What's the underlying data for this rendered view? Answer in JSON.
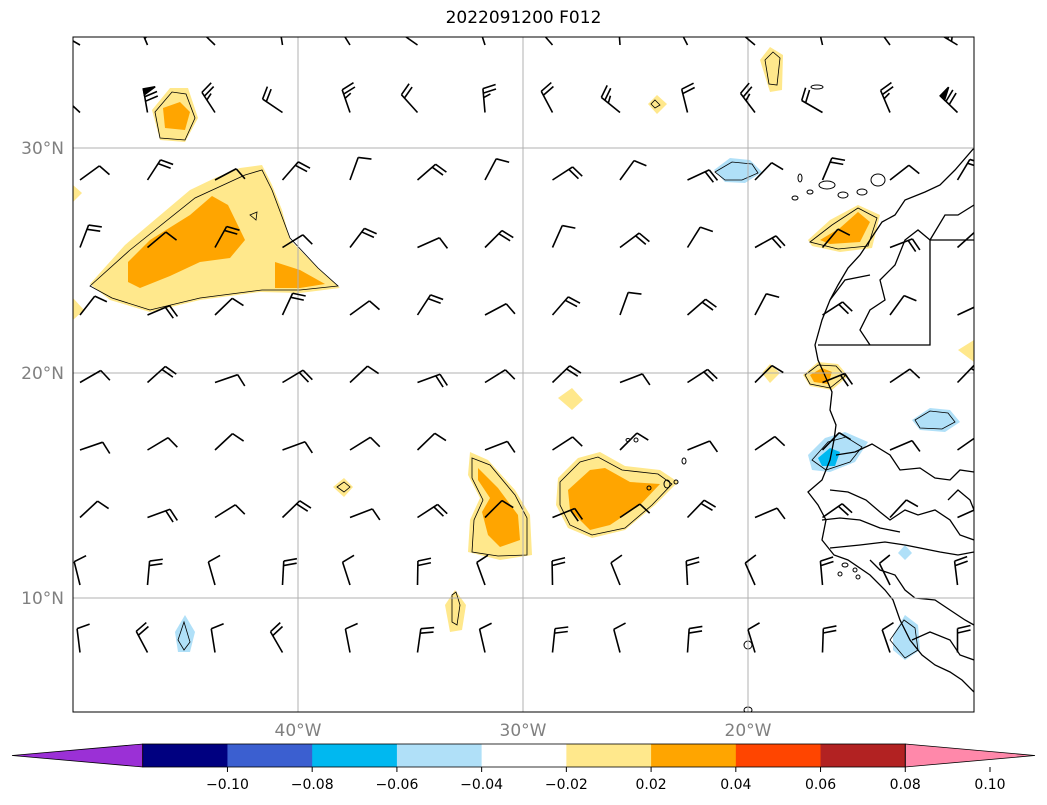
{
  "title": "2022091200 F012",
  "axes": {
    "lon_labels": [
      "40°W",
      "30°W",
      "20°W"
    ],
    "lat_labels": [
      "30°N",
      "20°N",
      "10°N"
    ],
    "label_color": "#808080"
  },
  "colorbar": {
    "tick_labels": [
      "−0.10",
      "−0.08",
      "−0.06",
      "−0.04",
      "−0.02",
      "0.02",
      "0.04",
      "0.06",
      "0.08",
      "0.10"
    ],
    "colors": [
      "#9b30d6",
      "#000080",
      "#3b5fd0",
      "#00b8f0",
      "#b0e0f8",
      "#ffffff",
      "#ffe88c",
      "#ffa500",
      "#ff4500",
      "#b22222",
      "#ff88aa"
    ]
  },
  "map": {
    "land_outline_color": "#000000",
    "grid_color": "#b0b0b0"
  }
}
